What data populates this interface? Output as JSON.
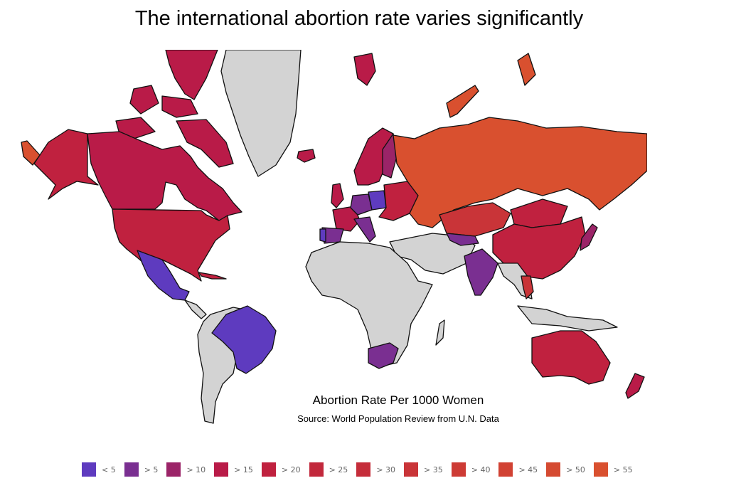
{
  "title": "The international abortion rate varies significantly",
  "map": {
    "caption": "Abortion Rate Per 1000 Women",
    "source": "Source: World Population Review from U.N. Data",
    "no_data_color": "#d3d3d3"
  },
  "legend": {
    "items": [
      {
        "label": "< 5",
        "color": "#5e3bbf"
      },
      {
        "label": "> 5",
        "color": "#7a2f91"
      },
      {
        "label": "> 10",
        "color": "#9b2468"
      },
      {
        "label": "> 15",
        "color": "#b91b48"
      },
      {
        "label": "> 20",
        "color": "#c0213f"
      },
      {
        "label": "> 25",
        "color": "#c2283c"
      },
      {
        "label": "> 30",
        "color": "#c52d3a"
      },
      {
        "label": "> 35",
        "color": "#c93438"
      },
      {
        "label": "> 40",
        "color": "#cd3b35"
      },
      {
        "label": "> 45",
        "color": "#d14233"
      },
      {
        "label": "> 50",
        "color": "#d54a31"
      },
      {
        "label": "> 55",
        "color": "#d9502f"
      }
    ]
  },
  "chart_data": {
    "type": "choropleth",
    "title": "The international abortion rate varies significantly",
    "subtitle": "Abortion Rate Per 1000 Women",
    "source": "Source: World Population Review from U.N. Data",
    "legend_position": "bottom",
    "bins": [
      "< 5",
      "> 5",
      "> 10",
      "> 15",
      "> 20",
      "> 25",
      "> 30",
      "> 35",
      "> 40",
      "> 45",
      "> 50",
      "> 55"
    ],
    "regions": [
      {
        "name": "Canada",
        "bin": "> 15"
      },
      {
        "name": "United States",
        "bin": "> 20"
      },
      {
        "name": "Alaska",
        "bin": "> 20"
      },
      {
        "name": "Mexico",
        "bin": "< 5"
      },
      {
        "name": "Cuba",
        "bin": "> 20"
      },
      {
        "name": "Brazil",
        "bin": "< 5"
      },
      {
        "name": "Greenland",
        "bin": "no data"
      },
      {
        "name": "Iceland",
        "bin": "> 15"
      },
      {
        "name": "United Kingdom",
        "bin": "> 15"
      },
      {
        "name": "France",
        "bin": "> 15"
      },
      {
        "name": "Spain",
        "bin": "> 5"
      },
      {
        "name": "Portugal",
        "bin": "< 5"
      },
      {
        "name": "Germany",
        "bin": "> 5"
      },
      {
        "name": "Poland",
        "bin": "< 5"
      },
      {
        "name": "Austria",
        "bin": "< 5"
      },
      {
        "name": "Italy",
        "bin": "> 5"
      },
      {
        "name": "Norway",
        "bin": "> 15"
      },
      {
        "name": "Sweden",
        "bin": "> 15"
      },
      {
        "name": "Finland",
        "bin": "> 10"
      },
      {
        "name": "Svalbard",
        "bin": "> 15"
      },
      {
        "name": "Belarus",
        "bin": "> 20"
      },
      {
        "name": "Ukraine",
        "bin": "> 25"
      },
      {
        "name": "Romania",
        "bin": "> 20"
      },
      {
        "name": "Russia",
        "bin": "> 55"
      },
      {
        "name": "Kazakhstan",
        "bin": "> 35"
      },
      {
        "name": "Mongolia",
        "bin": "> 20"
      },
      {
        "name": "China",
        "bin": "> 20"
      },
      {
        "name": "Japan",
        "bin": "> 10"
      },
      {
        "name": "India",
        "bin": "> 5"
      },
      {
        "name": "Uzbekistan",
        "bin": "> 5"
      },
      {
        "name": "Vietnam",
        "bin": "> 35"
      },
      {
        "name": "South Africa",
        "bin": "> 5"
      },
      {
        "name": "Australia",
        "bin": "> 15"
      },
      {
        "name": "New Zealand",
        "bin": "> 15"
      },
      {
        "name": "Africa (other)",
        "bin": "no data"
      },
      {
        "name": "Middle East",
        "bin": "no data"
      },
      {
        "name": "South America (other)",
        "bin": "no data"
      },
      {
        "name": "Southeast Asia (other)",
        "bin": "no data"
      }
    ]
  }
}
